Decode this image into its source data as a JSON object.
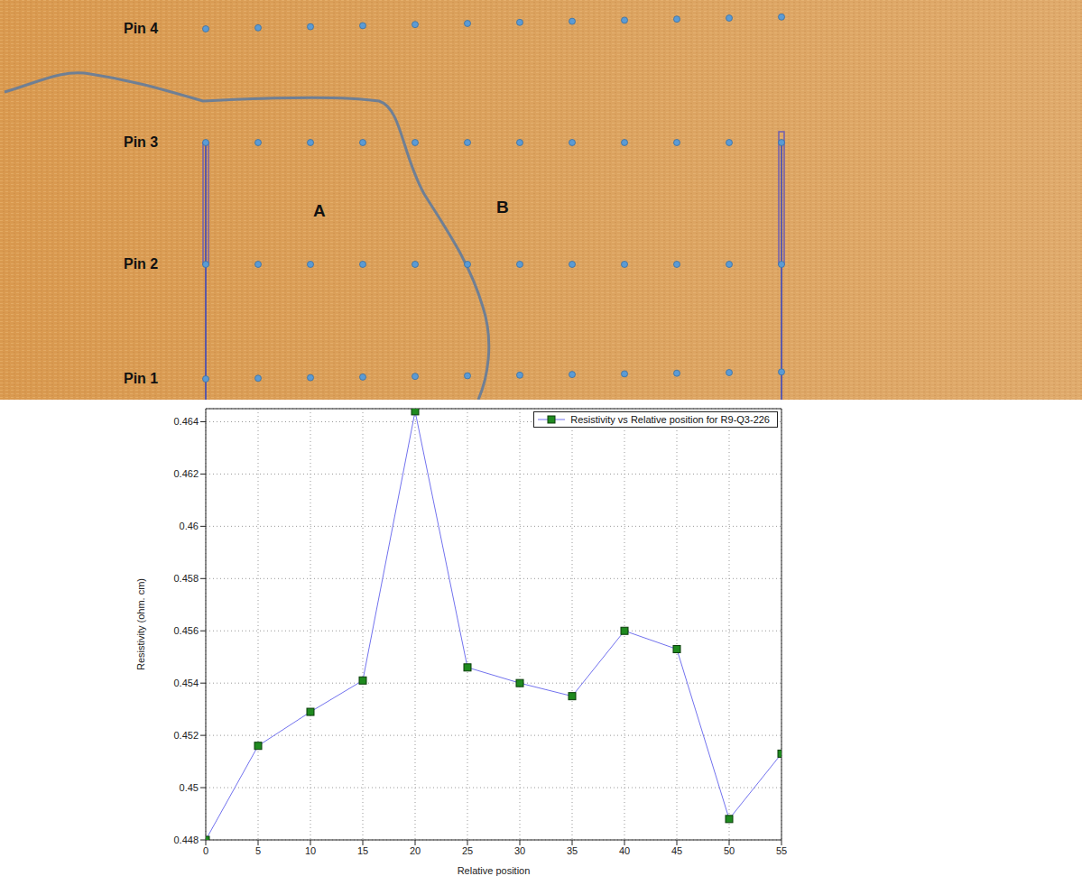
{
  "chart_data": {
    "type": "line",
    "x": [
      0,
      5,
      10,
      15,
      20,
      25,
      30,
      35,
      40,
      45,
      50,
      55
    ],
    "series": [
      {
        "name": "Resistivity vs Relative position for R9-Q3-226",
        "color": "#7272ee",
        "marker": "square",
        "line_style": "solid",
        "values": [
          0.448,
          0.4516,
          0.4529,
          0.4541,
          0.4644,
          0.4546,
          0.454,
          0.4535,
          0.456,
          0.4553,
          0.4488,
          0.4513
        ]
      }
    ],
    "xlabel": "Relative position",
    "ylabel": "Resistivity (ohm. cm)",
    "xlim": [
      0,
      55
    ],
    "xticks": [
      0,
      5,
      10,
      15,
      20,
      25,
      30,
      35,
      40,
      45,
      50,
      55
    ],
    "ylim": [
      0.448,
      0.4645
    ],
    "yticks": [
      0.448,
      0.45,
      0.452,
      0.454,
      0.456,
      0.458,
      0.46,
      0.462,
      0.464
    ],
    "grid": true,
    "legend": "upper right"
  },
  "image": {
    "pin_labels": [
      "Pin 4",
      "Pin 3",
      "Pin 2",
      "Pin 1"
    ],
    "region_labels": [
      "A",
      "B"
    ]
  }
}
